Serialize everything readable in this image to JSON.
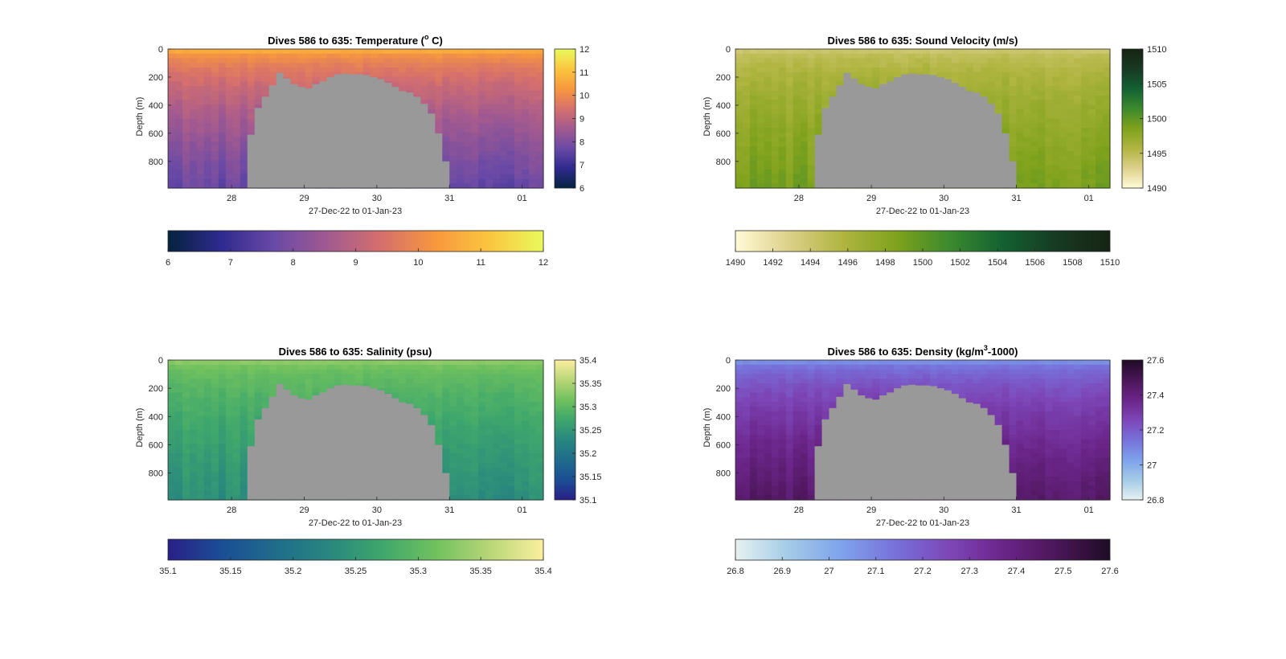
{
  "figure": {
    "panels": [
      {
        "id": "temperature",
        "title_main": "Dives 586 to 635: Temperature (",
        "title_sup": "o",
        "title_end": " C)",
        "ylabel": "Depth (m)",
        "xlabel": "27-Dec-22 to 01-Jan-23",
        "colormap": "thermal",
        "cbar_ticks": [
          "6",
          "7",
          "8",
          "9",
          "10",
          "11",
          "12"
        ],
        "hcbar_ticks": [
          "6",
          "7",
          "8",
          "9",
          "10",
          "11",
          "12"
        ]
      },
      {
        "id": "sound-velocity",
        "title_main": "Dives 586 to 635: Sound Velocity (m/s)",
        "title_sup": "",
        "title_end": "",
        "ylabel": "Depth (m)",
        "xlabel": "27-Dec-22 to 01-Jan-23",
        "colormap": "speed",
        "cbar_ticks": [
          "1490",
          "1495",
          "1500",
          "1505",
          "1510"
        ],
        "hcbar_ticks": [
          "1490",
          "1492",
          "1494",
          "1496",
          "1498",
          "1500",
          "1502",
          "1504",
          "1506",
          "1508",
          "1510"
        ]
      },
      {
        "id": "salinity",
        "title_main": "Dives 586 to 635: Salinity (psu)",
        "title_sup": "",
        "title_end": "",
        "ylabel": "Depth (m)",
        "xlabel": "27-Dec-22 to 01-Jan-23",
        "colormap": "haline",
        "cbar_ticks": [
          "35.1",
          "35.15",
          "35.2",
          "35.25",
          "35.3",
          "35.35",
          "35.4"
        ],
        "hcbar_ticks": [
          "35.1",
          "35.15",
          "35.2",
          "35.25",
          "35.3",
          "35.35",
          "35.4"
        ]
      },
      {
        "id": "density",
        "title_main": "Dives 586 to 635: Density (kg/m",
        "title_sup": "3",
        "title_end": "-1000)",
        "ylabel": "Depth (m)",
        "xlabel": "27-Dec-22 to 01-Jan-23",
        "colormap": "dense",
        "cbar_ticks": [
          "26.8",
          "27",
          "27.2",
          "27.4",
          "27.6"
        ],
        "hcbar_ticks": [
          "26.8",
          "26.9",
          "27",
          "27.1",
          "27.2",
          "27.3",
          "27.4",
          "27.5",
          "27.6"
        ]
      }
    ]
  },
  "colors": {
    "thermal": [
      "#04233e",
      "#2f2a8f",
      "#6a4aa6",
      "#a35a8f",
      "#d6706c",
      "#f8983e",
      "#fbc63f",
      "#e8fa5b"
    ],
    "speed": [
      "#fffbd6",
      "#dcd08a",
      "#b0b540",
      "#7fa21c",
      "#3c8a2e",
      "#136132",
      "#173a23",
      "#172313"
    ],
    "haline": [
      "#291f87",
      "#1b4e95",
      "#1f6c8b",
      "#28877f",
      "#3ea76c",
      "#70c15e",
      "#b8d677",
      "#fcef9f"
    ],
    "dense": [
      "#e6f1f1",
      "#a3cbe6",
      "#7ea2ec",
      "#7771d9",
      "#7d46b8",
      "#6b2589",
      "#4b1658",
      "#1f0c25"
    ],
    "seafloor": "#999999"
  },
  "chart_data": [
    {
      "type": "heatmap",
      "title": "Dives 586 to 635: Temperature (o C)",
      "xlabel": "27-Dec-22 to 01-Jan-23",
      "ylabel": "Depth (m)",
      "x_ticks": [
        "28",
        "29",
        "30",
        "31",
        "01"
      ],
      "x_range": [
        "27-Dec-22 03:00",
        "01-Jan-23 07:00"
      ],
      "y_ticks": [
        0,
        200,
        400,
        600,
        800
      ],
      "ylim": [
        990,
        0
      ],
      "y_reversed": true,
      "clim": [
        6,
        12
      ],
      "surface_value": 10.6,
      "bottom_value": 7.7,
      "seafloor_depth_m": [
        990,
        990,
        990,
        990,
        990,
        990,
        990,
        990,
        990,
        990,
        990,
        610,
        420,
        340,
        260,
        170,
        210,
        250,
        270,
        280,
        250,
        230,
        200,
        180,
        175,
        180,
        180,
        185,
        200,
        215,
        240,
        270,
        300,
        310,
        340,
        390,
        460,
        600,
        800,
        990,
        990,
        990,
        990,
        990,
        990,
        990,
        990,
        990,
        990,
        990,
        990,
        990
      ]
    },
    {
      "type": "heatmap",
      "title": "Dives 586 to 635: Sound Velocity (m/s)",
      "xlabel": "27-Dec-22 to 01-Jan-23",
      "ylabel": "Depth (m)",
      "x_ticks": [
        "28",
        "29",
        "30",
        "31",
        "01"
      ],
      "x_range": [
        "27-Dec-22 03:00",
        "01-Jan-23 07:00"
      ],
      "y_ticks": [
        0,
        200,
        400,
        600,
        800
      ],
      "ylim": [
        990,
        0
      ],
      "y_reversed": true,
      "clim": [
        1490,
        1510
      ],
      "surface_value": 1494,
      "bottom_value": 1499,
      "seafloor_depth_m": [
        990,
        990,
        990,
        990,
        990,
        990,
        990,
        990,
        990,
        990,
        990,
        610,
        420,
        340,
        260,
        170,
        210,
        250,
        270,
        280,
        250,
        230,
        200,
        180,
        175,
        180,
        180,
        185,
        200,
        215,
        240,
        270,
        300,
        310,
        340,
        390,
        460,
        600,
        800,
        990,
        990,
        990,
        990,
        990,
        990,
        990,
        990,
        990,
        990,
        990,
        990,
        990
      ]
    },
    {
      "type": "heatmap",
      "title": "Dives 586 to 635: Salinity (psu)",
      "xlabel": "27-Dec-22 to 01-Jan-23",
      "ylabel": "Depth (m)",
      "x_ticks": [
        "28",
        "29",
        "30",
        "31",
        "01"
      ],
      "x_range": [
        "27-Dec-22 03:00",
        "01-Jan-23 07:00"
      ],
      "y_ticks": [
        0,
        200,
        400,
        600,
        800
      ],
      "ylim": [
        990,
        0
      ],
      "y_reversed": true,
      "clim": [
        35.1,
        35.4
      ],
      "surface_value": 35.33,
      "bottom_value": 35.24,
      "seafloor_depth_m": [
        990,
        990,
        990,
        990,
        990,
        990,
        990,
        990,
        990,
        990,
        990,
        610,
        420,
        340,
        260,
        170,
        210,
        250,
        270,
        280,
        250,
        230,
        200,
        180,
        175,
        180,
        180,
        185,
        200,
        215,
        240,
        270,
        300,
        310,
        340,
        390,
        460,
        600,
        800,
        990,
        990,
        990,
        990,
        990,
        990,
        990,
        990,
        990,
        990,
        990,
        990,
        990
      ]
    },
    {
      "type": "heatmap",
      "title": "Dives 586 to 635: Density (kg/m3-1000)",
      "xlabel": "27-Dec-22 to 01-Jan-23",
      "ylabel": "Depth (m)",
      "x_ticks": [
        "28",
        "29",
        "30",
        "31",
        "01"
      ],
      "x_range": [
        "27-Dec-22 03:00",
        "01-Jan-23 07:00"
      ],
      "y_ticks": [
        0,
        200,
        400,
        600,
        800
      ],
      "ylim": [
        990,
        0
      ],
      "y_reversed": true,
      "clim": [
        26.8,
        27.6
      ],
      "surface_value": 27.08,
      "bottom_value": 27.45,
      "seafloor_depth_m": [
        990,
        990,
        990,
        990,
        990,
        990,
        990,
        990,
        990,
        990,
        990,
        610,
        420,
        340,
        260,
        170,
        210,
        250,
        270,
        280,
        250,
        230,
        200,
        180,
        175,
        180,
        180,
        185,
        200,
        215,
        240,
        270,
        300,
        310,
        340,
        390,
        460,
        600,
        800,
        990,
        990,
        990,
        990,
        990,
        990,
        990,
        990,
        990,
        990,
        990,
        990,
        990
      ]
    }
  ]
}
